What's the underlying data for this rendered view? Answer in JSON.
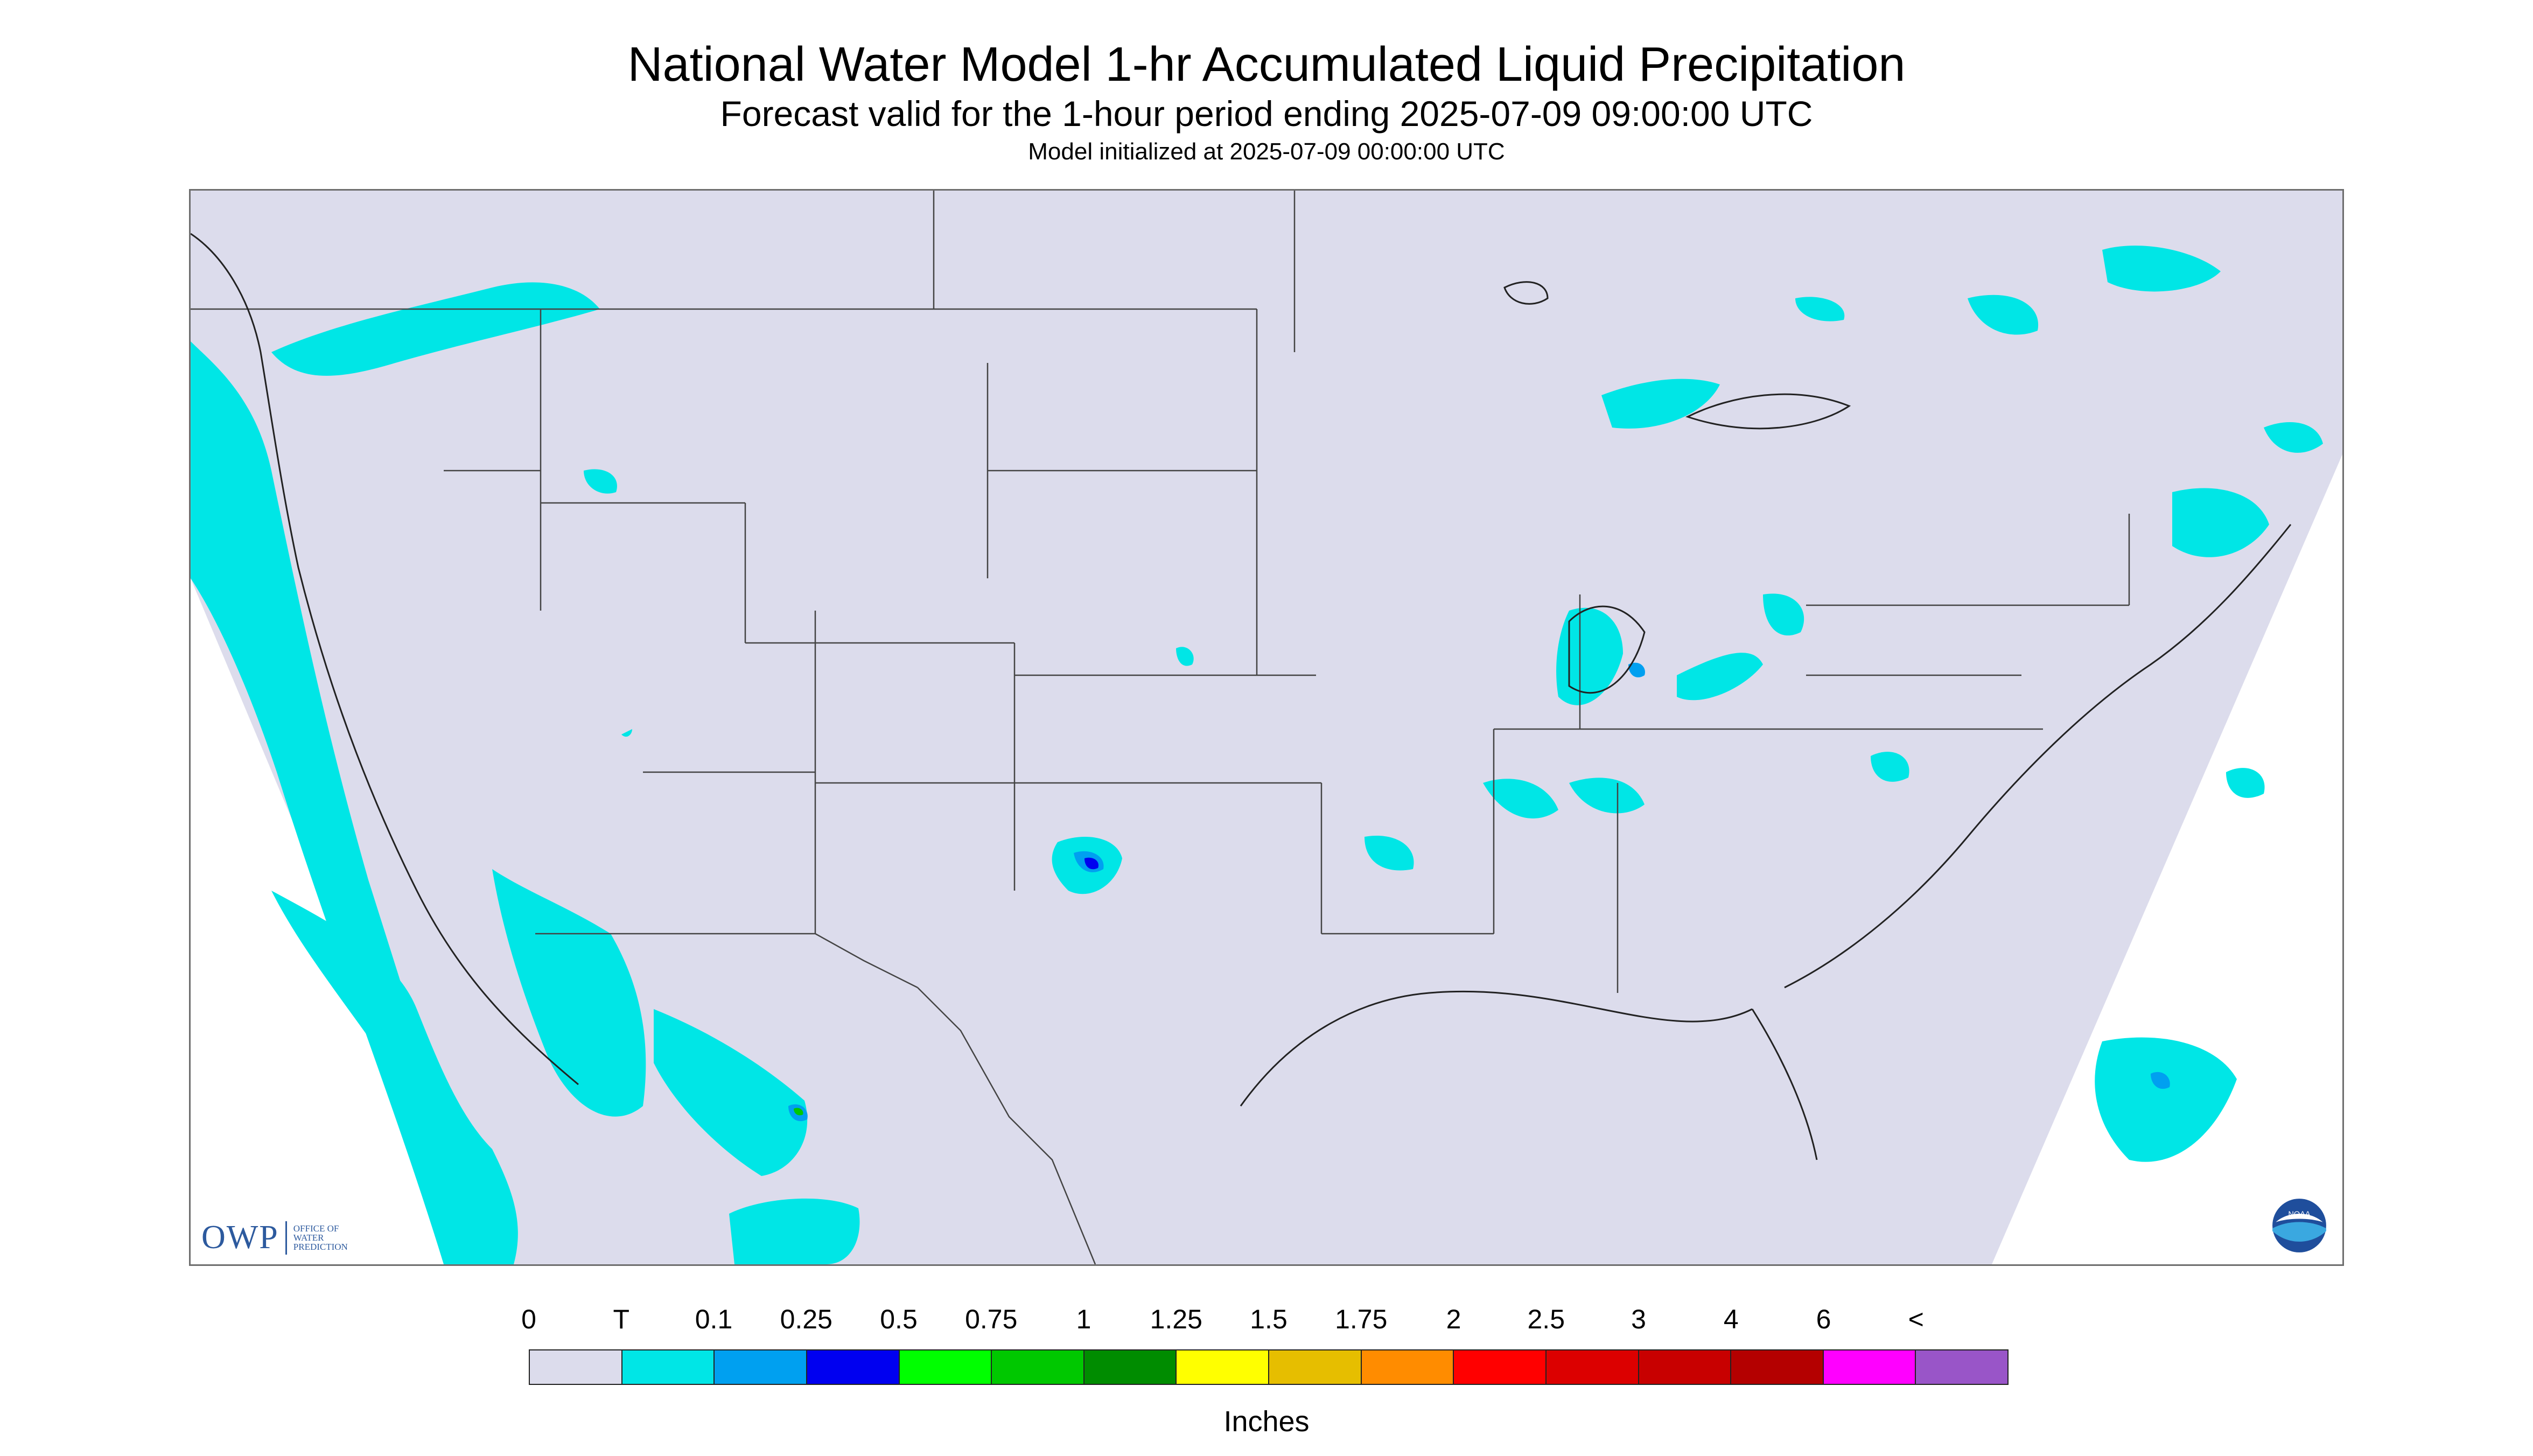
{
  "header": {
    "title": "National Water Model 1-hr Accumulated Liquid Precipitation",
    "subtitle": "Forecast valid for the 1-hour period ending 2025-07-09 09:00:00 UTC",
    "init": "Model initialized at 2025-07-09 00:00:00 UTC"
  },
  "logos": {
    "owp_mark": "OWP",
    "owp_text": [
      "OFFICE OF",
      "WATER",
      "PREDICTION"
    ],
    "noaa_text": "NOAA"
  },
  "colors": {
    "map_background": "#dcdcec",
    "no_data": "#ffffff",
    "boundary": "#444444"
  },
  "legend": {
    "labels": [
      "0",
      "T",
      "0.1",
      "0.25",
      "0.5",
      "0.75",
      "1",
      "1.25",
      "1.5",
      "1.75",
      "2",
      "2.5",
      "3",
      "4",
      "6",
      "<"
    ],
    "colors": [
      "#dcdcec",
      "#00e6e6",
      "#00a0f0",
      "#0000f0",
      "#00ff00",
      "#00c800",
      "#008c00",
      "#ffff00",
      "#e6be00",
      "#ff8c00",
      "#ff0000",
      "#dc0000",
      "#c80000",
      "#b40000",
      "#ff00ff",
      "#9955c8"
    ],
    "units": "Inches"
  }
}
